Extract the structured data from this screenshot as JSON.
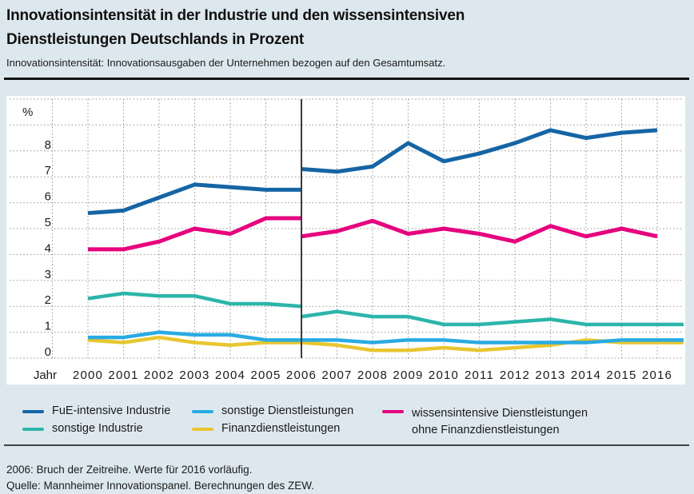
{
  "header": {
    "title_line1": "Innovationsintensität in der Industrie und den wissensintensiven",
    "title_line2": "Dienstleistungen Deutschlands in Prozent",
    "subtitle": "Innovationsintensität: Innovationsausgaben der Unternehmen bezogen auf den Gesamtumsatz."
  },
  "chart_data": {
    "type": "line",
    "title": "Innovationsintensität in der Industrie und den wissensintensiven Dienstleistungen Deutschlands in Prozent",
    "y_unit_label": "%",
    "x_axis_label": "Jahr",
    "years": [
      2000,
      2001,
      2002,
      2003,
      2004,
      2005,
      2006,
      2007,
      2008,
      2009,
      2010,
      2011,
      2012,
      2013,
      2014,
      2015,
      2016
    ],
    "y_ticks": [
      0,
      1,
      2,
      3,
      4,
      5,
      6,
      7,
      8
    ],
    "ylim": [
      0,
      10
    ],
    "grid": "dotted",
    "legend_position": "bottom",
    "break_year": 2006,
    "break_note": "Bruch der Zeitreihe 2006 (senkrechte Linie)",
    "series": [
      {
        "name": "FuE-intensive Industrie",
        "color": "#1565a5",
        "width": 5,
        "z": 5,
        "segments": [
          {
            "start_year": 2000,
            "values": [
              5.6,
              5.7,
              6.2,
              6.7,
              6.6,
              6.5,
              6.5
            ]
          },
          {
            "start_year": 2006,
            "values": [
              7.3,
              7.2,
              7.4,
              8.3,
              7.6,
              7.9,
              8.3,
              8.8,
              8.5,
              8.7,
              8.8
            ]
          }
        ]
      },
      {
        "name": "wissensintensive Dienstleistungen ohne Finanzdienstleistungen",
        "color": "#e6007e",
        "width": 5,
        "z": 4,
        "segments": [
          {
            "start_year": 2000,
            "values": [
              4.2,
              4.2,
              4.5,
              5.0,
              4.8,
              5.4,
              5.4
            ]
          },
          {
            "start_year": 2006,
            "values": [
              4.7,
              4.9,
              5.3,
              4.8,
              5.0,
              4.8,
              4.5,
              5.1,
              4.7,
              5.0,
              4.7
            ]
          }
        ]
      },
      {
        "name": "sonstige Industrie",
        "color": "#2cb5aa",
        "width": 4.5,
        "z": 1,
        "extend_to_edge": true,
        "segments": [
          {
            "start_year": 2000,
            "values": [
              2.3,
              2.5,
              2.4,
              2.4,
              2.1,
              2.1,
              2.0
            ]
          },
          {
            "start_year": 2006,
            "values": [
              1.6,
              1.8,
              1.6,
              1.6,
              1.3,
              1.3,
              1.4,
              1.5,
              1.3,
              1.3,
              1.3
            ]
          }
        ]
      },
      {
        "name": "sonstige Dienstleistungen",
        "color": "#29abe2",
        "width": 4.5,
        "z": 3,
        "extend_to_edge": true,
        "segments": [
          {
            "start_year": 2000,
            "values": [
              0.8,
              0.8,
              1.0,
              0.9,
              0.9,
              0.7,
              0.7
            ]
          },
          {
            "start_year": 2006,
            "values": [
              0.7,
              0.7,
              0.6,
              0.7,
              0.7,
              0.6,
              0.6,
              0.6,
              0.6,
              0.7,
              0.7
            ]
          }
        ]
      },
      {
        "name": "Finanzdienstleistungen",
        "color": "#e8c62f",
        "width": 4.5,
        "z": 2,
        "extend_to_edge": true,
        "segments": [
          {
            "start_year": 2000,
            "values": [
              0.7,
              0.6,
              0.8,
              0.6,
              0.5,
              0.6,
              0.6
            ]
          },
          {
            "start_year": 2006,
            "values": [
              0.6,
              0.5,
              0.3,
              0.3,
              0.4,
              0.3,
              0.4,
              0.5,
              0.7,
              0.6,
              0.6
            ]
          }
        ]
      }
    ]
  },
  "legend": {
    "items": [
      {
        "label": "FuE-intensive Industrie",
        "color": "#1565a5"
      },
      {
        "label": "sonstige Industrie",
        "color": "#2cb5aa"
      },
      {
        "label": "sonstige Dienstleistungen",
        "color": "#29abe2"
      },
      {
        "label": "Finanzdienstleistungen",
        "color": "#e8c62f"
      },
      {
        "label_line1": "wissensintensive Dienstleistungen",
        "label_line2": "ohne Finanzdienstleistungen",
        "color": "#e6007e"
      }
    ]
  },
  "footer": {
    "note": "2006: Bruch der Zeitreihe. Werte für 2016 vorläufig.",
    "source": "Quelle: Mannheimer Innovationspanel. Berechnungen des ZEW."
  }
}
